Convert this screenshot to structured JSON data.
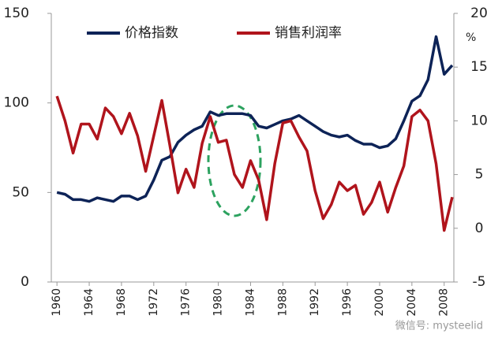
{
  "chart_data": {
    "type": "line",
    "x": [
      1960,
      1961,
      1962,
      1963,
      1964,
      1965,
      1966,
      1967,
      1968,
      1969,
      1970,
      1971,
      1972,
      1973,
      1974,
      1975,
      1976,
      1977,
      1978,
      1979,
      1980,
      1981,
      1982,
      1983,
      1984,
      1985,
      1986,
      1987,
      1988,
      1989,
      1990,
      1991,
      1992,
      1993,
      1994,
      1995,
      1996,
      1997,
      1998,
      1999,
      2000,
      2001,
      2002,
      2003,
      2004,
      2005,
      2006,
      2007,
      2008,
      2009
    ],
    "series": [
      {
        "name": "价格指数",
        "color": "#0d2357",
        "values": [
          50,
          49,
          46,
          46,
          45,
          47,
          46,
          45,
          48,
          48,
          46,
          48,
          57,
          68,
          70,
          78,
          82,
          85,
          87,
          95,
          93,
          94,
          94,
          94,
          93,
          87,
          86,
          88,
          90,
          91,
          93,
          90,
          87,
          84,
          82,
          81,
          82,
          79,
          77,
          77,
          75,
          76,
          80,
          90,
          101,
          104,
          113,
          137,
          116,
          121
        ]
      },
      {
        "name": "销售利润率",
        "color": "#b0141c",
        "axis": "y2",
        "values": [
          12.3,
          10,
          7,
          9.7,
          9.7,
          8.3,
          11.2,
          10.4,
          8.8,
          10.7,
          8.6,
          5.3,
          8.6,
          11.9,
          7.7,
          3.3,
          5.5,
          3.8,
          7.9,
          10.4,
          8,
          8.2,
          5,
          3.8,
          6.3,
          4.5,
          0.8,
          6,
          9.8,
          10,
          8.5,
          7.2,
          3.5,
          0.9,
          2.2,
          4.3,
          3.5,
          4,
          1.3,
          2.4,
          4.3,
          1.5,
          3.8,
          5.8,
          10.4,
          11,
          10,
          6,
          -0.2,
          2.9
        ]
      }
    ],
    "xlim": [
      1959.3,
      2009.2
    ],
    "xticks": [
      1960,
      1964,
      1968,
      1972,
      1976,
      1980,
      1984,
      1988,
      1992,
      1996,
      2000,
      2004,
      2008
    ],
    "ylim": [
      0,
      150
    ],
    "yticks": [
      0,
      50,
      100,
      150
    ],
    "y2lim": [
      -5,
      20
    ],
    "y2ticks": [
      -5,
      0,
      5,
      10,
      15,
      20
    ],
    "y2_unit": "%",
    "watermark": "微信号: mysteelid"
  }
}
